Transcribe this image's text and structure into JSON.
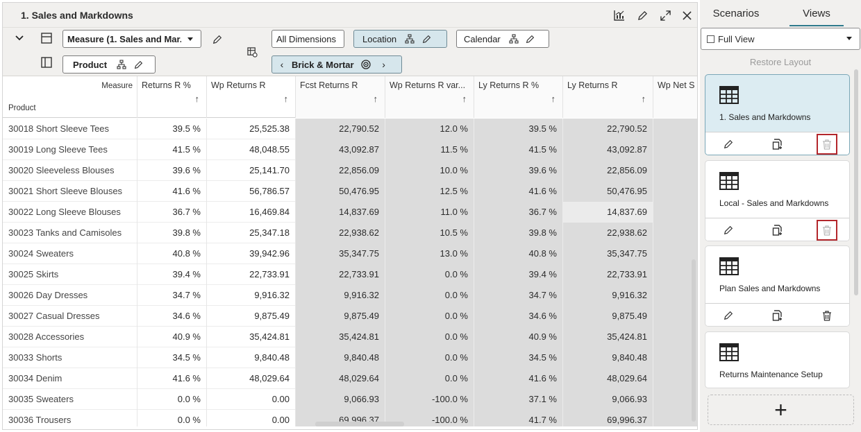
{
  "panel": {
    "title": "1. Sales and Markdowns"
  },
  "toolbar": {
    "measure_dropdown": "Measure (1. Sales and Mar...",
    "product_label": "Product",
    "all_dimensions_label": "All Dimensions",
    "location_label": "Location",
    "calendar_label": "Calendar",
    "location_value": "Brick & Mortar"
  },
  "grid": {
    "corner_measure": "Measure",
    "corner_product": "Product",
    "columns": [
      {
        "label": "Returns R %",
        "editable": true
      },
      {
        "label": "Wp Returns R",
        "editable": true
      },
      {
        "label": "Fcst Returns R",
        "editable": false
      },
      {
        "label": "Wp Returns R var...",
        "editable": false
      },
      {
        "label": "Ly Returns R %",
        "editable": false
      },
      {
        "label": "Ly Returns R",
        "editable": false
      },
      {
        "label": "Wp Net S",
        "editable": false
      }
    ],
    "rows": [
      {
        "product": "30018 Short Sleeve Tees",
        "values": [
          "39.5 %",
          "25,525.38",
          "22,790.52",
          "12.0 %",
          "39.5 %",
          "22,790.52",
          ""
        ]
      },
      {
        "product": "30019 Long Sleeve Tees",
        "values": [
          "41.5 %",
          "48,048.55",
          "43,092.87",
          "11.5 %",
          "41.5 %",
          "43,092.87",
          ""
        ]
      },
      {
        "product": "30020 Sleeveless Blouses",
        "values": [
          "39.6 %",
          "25,141.70",
          "22,856.09",
          "10.0 %",
          "39.6 %",
          "22,856.09",
          ""
        ]
      },
      {
        "product": "30021 Short Sleeve Blouses",
        "values": [
          "41.6 %",
          "56,786.57",
          "50,476.95",
          "12.5 %",
          "41.6 %",
          "50,476.95",
          ""
        ]
      },
      {
        "product": "30022 Long Sleeve Blouses",
        "values": [
          "36.7 %",
          "16,469.84",
          "14,837.69",
          "11.0 %",
          "36.7 %",
          "14,837.69",
          ""
        ]
      },
      {
        "product": "30023 Tanks and Camisoles",
        "values": [
          "39.8 %",
          "25,347.18",
          "22,938.62",
          "10.5 %",
          "39.8 %",
          "22,938.62",
          ""
        ]
      },
      {
        "product": "30024 Sweaters",
        "values": [
          "40.8 %",
          "39,942.96",
          "35,347.75",
          "13.0 %",
          "40.8 %",
          "35,347.75",
          ""
        ]
      },
      {
        "product": "30025 Skirts",
        "values": [
          "39.4 %",
          "22,733.91",
          "22,733.91",
          "0.0 %",
          "39.4 %",
          "22,733.91",
          ""
        ]
      },
      {
        "product": "30026 Day Dresses",
        "values": [
          "34.7 %",
          "9,916.32",
          "9,916.32",
          "0.0 %",
          "34.7 %",
          "9,916.32",
          ""
        ]
      },
      {
        "product": "30027 Casual Dresses",
        "values": [
          "34.6 %",
          "9,875.49",
          "9,875.49",
          "0.0 %",
          "34.6 %",
          "9,875.49",
          ""
        ]
      },
      {
        "product": "30028 Accessories",
        "values": [
          "40.9 %",
          "35,424.81",
          "35,424.81",
          "0.0 %",
          "40.9 %",
          "35,424.81",
          ""
        ]
      },
      {
        "product": "30033 Shorts",
        "values": [
          "34.5 %",
          "9,840.48",
          "9,840.48",
          "0.0 %",
          "34.5 %",
          "9,840.48",
          ""
        ]
      },
      {
        "product": "30034 Denim",
        "values": [
          "41.6 %",
          "48,029.64",
          "48,029.64",
          "0.0 %",
          "41.6 %",
          "48,029.64",
          ""
        ]
      },
      {
        "product": "30035 Sweaters",
        "values": [
          "0.0 %",
          "0.00",
          "9,066.93",
          "-100.0 %",
          "37.1 %",
          "9,066.93",
          ""
        ]
      },
      {
        "product": "30036 Trousers",
        "values": [
          "0.0 %",
          "0.00",
          "69,996.37",
          "-100.0 %",
          "41.7 %",
          "69,996.37",
          ""
        ]
      }
    ]
  },
  "side": {
    "tabs": [
      "Scenarios",
      "Views"
    ],
    "active_tab": "Views",
    "view_select": "Full View",
    "restore_layout": "Restore Layout",
    "views": [
      {
        "name": "1. Sales and Markdowns",
        "active": true,
        "delete_highlighted": true
      },
      {
        "name": "Local - Sales and Markdowns",
        "active": false,
        "delete_highlighted": true
      },
      {
        "name": "Plan Sales and Markdowns",
        "active": false,
        "delete_highlighted": false
      },
      {
        "name": "Returns Maintenance Setup",
        "active": false,
        "delete_highlighted": false
      }
    ],
    "add_label": "+"
  },
  "colors": {
    "accent": "#2e7a8c",
    "readonly_cell": "#dcdcdc",
    "highlight_border": "#b3262b",
    "active_card": "#dcecf2"
  }
}
